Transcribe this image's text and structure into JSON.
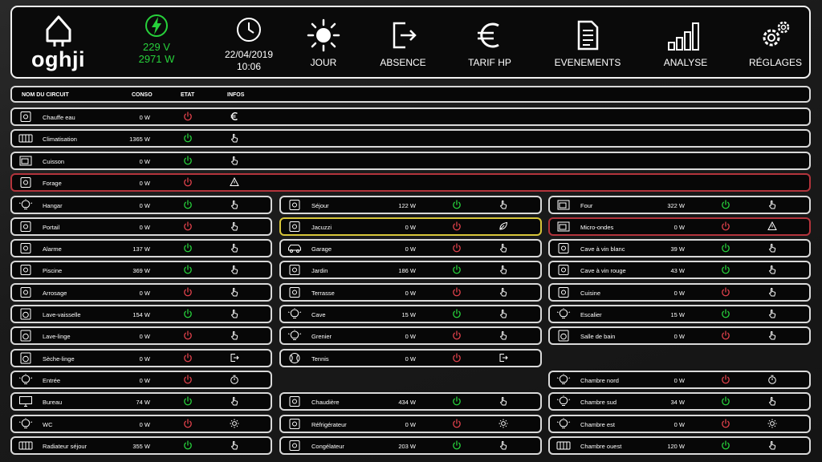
{
  "header": {
    "brand": "oghji",
    "voltage": "229 V",
    "power": "2971 W",
    "date": "22/04/2019",
    "time": "10:06",
    "nav": [
      {
        "label": "JOUR",
        "icon": "sun-icon"
      },
      {
        "label": "ABSENCE",
        "icon": "exit-icon"
      },
      {
        "label": "TARIF HP",
        "icon": "euro-icon"
      },
      {
        "label": "EVENEMENTS",
        "icon": "document-icon"
      },
      {
        "label": "ANALYSE",
        "icon": "bar-chart-icon"
      },
      {
        "label": "RÉGLAGES",
        "icon": "gears-icon"
      }
    ]
  },
  "table_header": {
    "name": "NOM DU CIRCUIT",
    "conso": "CONSO",
    "etat": "ETAT",
    "infos": "INFOS"
  },
  "colors": {
    "green": "#27d13b",
    "red": "#e0414b",
    "yellow": "#d8c63a",
    "white": "#ffffff"
  },
  "wide_rows": [
    {
      "name": "Chauffe eau",
      "conso": "0 W",
      "state": "off",
      "info": "euro-icon",
      "border": "normal",
      "icon": "water-heater-icon"
    },
    {
      "name": "Climatisation",
      "conso": "1365 W",
      "state": "on",
      "info": "hand-icon",
      "border": "normal",
      "icon": "air-conditioner-icon"
    },
    {
      "name": "Cuisson",
      "conso": "0 W",
      "state": "on",
      "info": "hand-icon",
      "border": "normal",
      "icon": "cooktop-icon"
    },
    {
      "name": "Forage",
      "conso": "0 W",
      "state": "off",
      "info": "warning-icon",
      "border": "red",
      "icon": "pump-icon"
    }
  ],
  "col1": [
    {
      "name": "Hangar",
      "conso": "0 W",
      "state": "on",
      "info": "hand-icon",
      "icon": "lightbulb-icon"
    },
    {
      "name": "Portail",
      "conso": "0 W",
      "state": "off",
      "info": "hand-icon",
      "icon": "gate-icon"
    },
    {
      "name": "Alarme",
      "conso": "137 W",
      "state": "on",
      "info": "hand-icon",
      "icon": "alarm-icon"
    },
    {
      "name": "Piscine",
      "conso": "369 W",
      "state": "on",
      "info": "hand-icon",
      "icon": "pool-icon"
    },
    {
      "name": "Arrosage",
      "conso": "0 W",
      "state": "off",
      "info": "hand-icon",
      "icon": "sprinkler-icon"
    },
    {
      "name": "Lave-vaisselle",
      "conso": "154 W",
      "state": "on",
      "info": "hand-icon",
      "icon": "dishwasher-icon"
    },
    {
      "name": "Lave-linge",
      "conso": "0 W",
      "state": "off",
      "info": "hand-icon",
      "icon": "washing-machine-icon"
    },
    {
      "name": "Sèche-linge",
      "conso": "0 W",
      "state": "off",
      "info": "exit-icon",
      "icon": "dryer-icon"
    },
    {
      "name": "Entrée",
      "conso": "0 W",
      "state": "off",
      "info": "timer-icon",
      "icon": "lightbulb-icon"
    },
    {
      "name": "Bureau",
      "conso": "74 W",
      "state": "on",
      "info": "hand-icon",
      "icon": "monitor-icon"
    },
    {
      "name": "WC",
      "conso": "0 W",
      "state": "off",
      "info": "sun-icon",
      "icon": "lightbulb-icon"
    },
    {
      "name": "Radiateur séjour",
      "conso": "355 W",
      "state": "on",
      "info": "hand-icon",
      "icon": "radiator-icon"
    }
  ],
  "col2": [
    {
      "name": "Séjour",
      "conso": "122 W",
      "state": "on",
      "info": "hand-icon",
      "icon": "switch-icon",
      "border": "normal",
      "slot": 0
    },
    {
      "name": "Jacuzzi",
      "conso": "0 W",
      "state": "off",
      "info": "leaf-icon",
      "icon": "jacuzzi-icon",
      "border": "yellow",
      "slot": 1
    },
    {
      "name": "Garage",
      "conso": "0 W",
      "state": "off",
      "info": "hand-icon",
      "icon": "car-icon",
      "border": "normal",
      "slot": 2
    },
    {
      "name": "Jardin",
      "conso": "186 W",
      "state": "on",
      "info": "hand-icon",
      "icon": "shovel-icon",
      "border": "normal",
      "slot": 3
    },
    {
      "name": "Terrasse",
      "conso": "0 W",
      "state": "off",
      "info": "hand-icon",
      "icon": "pergola-icon",
      "border": "normal",
      "slot": 4
    },
    {
      "name": "Cave",
      "conso": "15 W",
      "state": "on",
      "info": "hand-icon",
      "icon": "lightbulb-icon",
      "border": "normal",
      "slot": 5
    },
    {
      "name": "Grenier",
      "conso": "0 W",
      "state": "off",
      "info": "hand-icon",
      "icon": "lightbulb-icon",
      "border": "normal",
      "slot": 6
    },
    {
      "name": "Tennis",
      "conso": "0 W",
      "state": "off",
      "info": "exit-icon",
      "icon": "tennis-ball-icon",
      "border": "normal",
      "slot": 7
    },
    {
      "name": "Chaudière",
      "conso": "434 W",
      "state": "on",
      "info": "hand-icon",
      "icon": "boiler-icon",
      "border": "normal",
      "slot": 9
    },
    {
      "name": "Réfrigérateur",
      "conso": "0 W",
      "state": "off",
      "info": "sun-icon",
      "icon": "fridge-icon",
      "border": "normal",
      "slot": 10
    },
    {
      "name": "Congélateur",
      "conso": "203 W",
      "state": "on",
      "info": "hand-icon",
      "icon": "freezer-icon",
      "border": "normal",
      "slot": 11
    }
  ],
  "col3": [
    {
      "name": "Four",
      "conso": "322 W",
      "state": "on",
      "info": "hand-icon",
      "icon": "oven-icon",
      "border": "normal",
      "slot": 0
    },
    {
      "name": "Micro-ondes",
      "conso": "0 W",
      "state": "off",
      "info": "warning-icon",
      "icon": "microwave-icon",
      "border": "red",
      "slot": 1
    },
    {
      "name": "Cave à vin blanc",
      "conso": "39 W",
      "state": "on",
      "info": "hand-icon",
      "icon": "wine-bottles-icon",
      "border": "normal",
      "slot": 2
    },
    {
      "name": "Cave à vin rouge",
      "conso": "43 W",
      "state": "on",
      "info": "hand-icon",
      "icon": "wine-bottles-icon",
      "border": "normal",
      "slot": 3
    },
    {
      "name": "Cuisine",
      "conso": "0 W",
      "state": "off",
      "info": "hand-icon",
      "icon": "kitchen-hood-icon",
      "border": "normal",
      "slot": 4
    },
    {
      "name": "Escalier",
      "conso": "15 W",
      "state": "on",
      "info": "hand-icon",
      "icon": "lightbulb-icon",
      "border": "normal",
      "slot": 5
    },
    {
      "name": "Salle de bain",
      "conso": "0 W",
      "state": "off",
      "info": "hand-icon",
      "icon": "washing-machine-icon",
      "border": "normal",
      "slot": 6
    },
    {
      "name": "Chambre nord",
      "conso": "0 W",
      "state": "off",
      "info": "timer-icon",
      "icon": "lightbulb-icon",
      "border": "normal",
      "slot": 8
    },
    {
      "name": "Chambre sud",
      "conso": "34 W",
      "state": "on",
      "info": "hand-icon",
      "icon": "bulb-gear-icon",
      "border": "normal",
      "slot": 9
    },
    {
      "name": "Chambre est",
      "conso": "0 W",
      "state": "off",
      "info": "sun-icon",
      "icon": "lightbulb-icon",
      "border": "normal",
      "slot": 10
    },
    {
      "name": "Chambre ouest",
      "conso": "120 W",
      "state": "on",
      "info": "hand-icon",
      "icon": "radiator-icon",
      "border": "normal",
      "slot": 11
    }
  ]
}
